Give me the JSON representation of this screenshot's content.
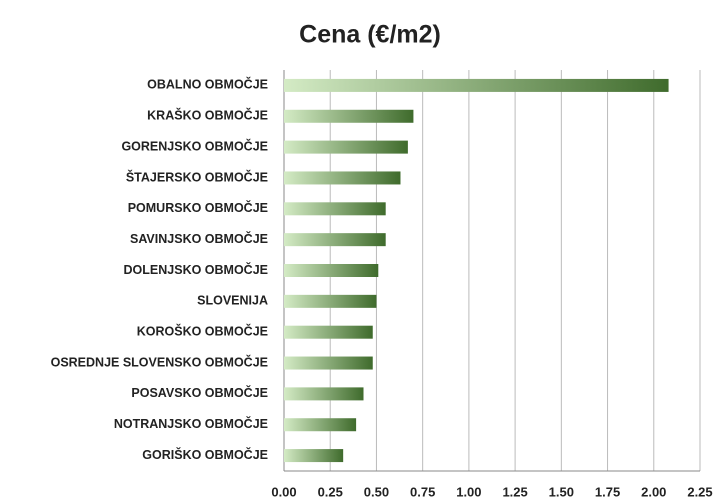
{
  "chart_data": {
    "type": "bar",
    "orientation": "horizontal",
    "title": "Cena (€/m2)",
    "categories": [
      "OBALNO OBMOČJE",
      "KRAŠKO OBMOČJE",
      "GORENJSKO OBMOČJE",
      "ŠTAJERSKO OBMOČJE",
      "POMURSKO OBMOČJE",
      "SAVINJSKO OBMOČJE",
      "DOLENJSKO OBMOČJE",
      "SLOVENIJA",
      "KOROŠKO OBMOČJE",
      "OSREDNJE SLOVENSKO OBMOČJE",
      "POSAVSKO  OBMOČJE",
      "NOTRANJSKO OBMOČJE",
      "GORIŠKO OBMOČJE"
    ],
    "values": [
      2.08,
      0.7,
      0.67,
      0.63,
      0.55,
      0.55,
      0.51,
      0.5,
      0.48,
      0.48,
      0.43,
      0.39,
      0.32
    ],
    "color": "#3f6b2c",
    "color_light": "#d4ebc5",
    "xlim": [
      0,
      2.25
    ],
    "xticks": [
      {
        "value": 0,
        "label": "0.00"
      },
      {
        "value": 0.25,
        "label": "0.25"
      },
      {
        "value": 0.5,
        "label": "0.50"
      },
      {
        "value": 0.75,
        "label": "0.75"
      },
      {
        "value": 1,
        "label": "1.00"
      },
      {
        "value": 1.25,
        "label": "1.25"
      },
      {
        "value": 1.5,
        "label": "1.50"
      },
      {
        "value": 1.75,
        "label": "1.75"
      },
      {
        "value": 2,
        "label": "2.00"
      },
      {
        "value": 2.25,
        "label": "2.25"
      }
    ],
    "grid": true
  }
}
